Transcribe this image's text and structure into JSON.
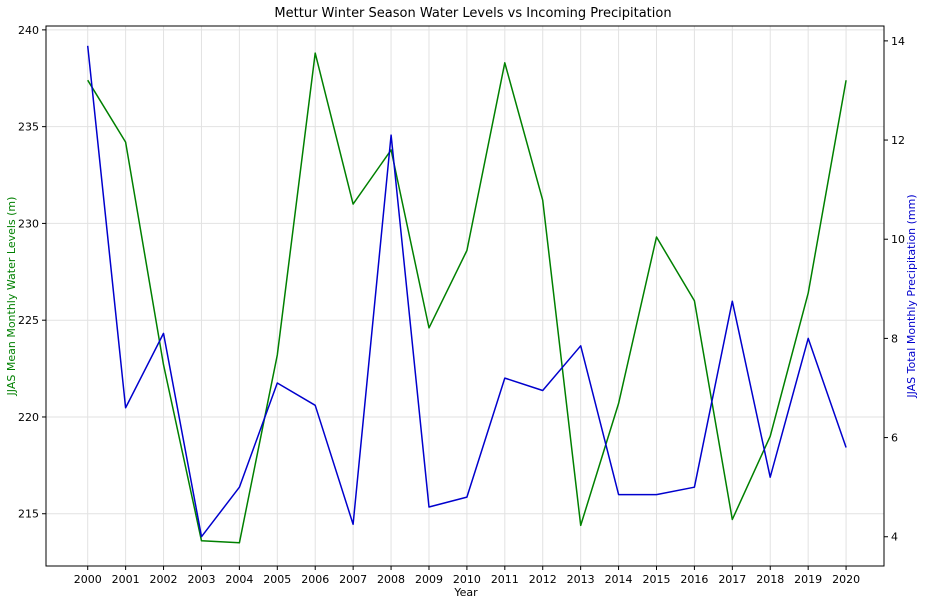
{
  "chart_data": {
    "type": "line",
    "title": "Mettur Winter Season Water Levels vs Incoming Precipitation",
    "xlabel": "Year",
    "ylabel_left": "JJAS Mean Monthly Water Levels (m)",
    "ylabel_right": "JJAS Total Monthly Precipitation (mm)",
    "x": [
      2000,
      2001,
      2002,
      2003,
      2004,
      2005,
      2006,
      2007,
      2008,
      2009,
      2010,
      2011,
      2012,
      2013,
      2014,
      2015,
      2016,
      2017,
      2018,
      2019,
      2020
    ],
    "x_tick_labels": [
      "2000",
      "2001",
      "2002",
      "2003",
      "2004",
      "2005",
      "2006",
      "2007",
      "2008",
      "2009",
      "2010",
      "2011",
      "2012",
      "2013",
      "2014",
      "2015",
      "2016",
      "2017",
      "2018",
      "2019",
      "2020"
    ],
    "xlim": [
      1998.9,
      2021.0
    ],
    "ylim_left": [
      212.3,
      240.2
    ],
    "ylim_right": [
      3.41,
      14.3
    ],
    "y_ticks_left": [
      215,
      220,
      225,
      230,
      235,
      240
    ],
    "y_ticks_right": [
      4,
      6,
      8,
      10,
      12,
      14
    ],
    "grid": true,
    "series": [
      {
        "axis": "left",
        "color": "#008000",
        "values": [
          237.4,
          234.2,
          222.7,
          213.6,
          213.5,
          223.2,
          238.8,
          231.0,
          233.8,
          224.6,
          228.6,
          238.3,
          231.2,
          214.4,
          220.7,
          229.3,
          226.0,
          214.7,
          219.0,
          226.4,
          237.4
        ]
      },
      {
        "axis": "right",
        "color": "#0000cd",
        "values": [
          13.9,
          6.6,
          8.1,
          4.0,
          5.0,
          7.1,
          6.65,
          4.25,
          12.1,
          4.6,
          4.8,
          7.2,
          6.95,
          7.85,
          4.85,
          4.85,
          5.0,
          8.75,
          5.2,
          8.0,
          5.8
        ]
      }
    ]
  }
}
